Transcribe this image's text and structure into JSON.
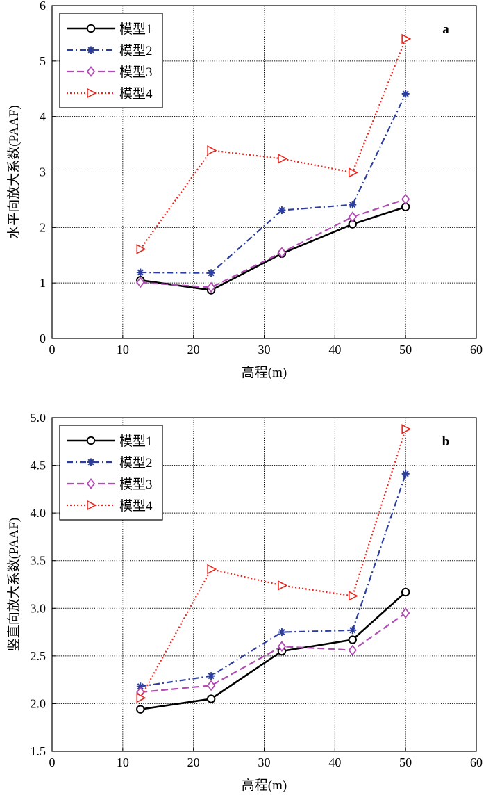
{
  "chart_data": [
    {
      "type": "line",
      "panel_label": "a",
      "xlabel": "高程(m)",
      "ylabel": "水平向放大系数(PAAF)",
      "xlim": [
        0,
        60
      ],
      "ylim": [
        0,
        6
      ],
      "xticks": [
        0,
        10,
        20,
        30,
        40,
        50,
        60
      ],
      "xtick_labels": [
        "0",
        "10",
        "20",
        "30",
        "40",
        "50",
        "60"
      ],
      "yticks": [
        0,
        1,
        2,
        3,
        4,
        5,
        6
      ],
      "ytick_labels": [
        "0",
        "1",
        "2",
        "3",
        "4",
        "5",
        "6"
      ],
      "grid": true,
      "legend_position": "top-left",
      "x": [
        12.5,
        22.5,
        32.5,
        42.5,
        50
      ],
      "series": [
        {
          "name": "模型1",
          "values": [
            1.05,
            0.87,
            1.53,
            2.06,
            2.37
          ],
          "color": "#000000",
          "dash": "solid",
          "marker": "circle"
        },
        {
          "name": "模型2",
          "values": [
            1.19,
            1.18,
            2.31,
            2.41,
            4.41
          ],
          "color": "#2b3e9e",
          "dash": "dashdot",
          "marker": "asterisk"
        },
        {
          "name": "模型3",
          "values": [
            1.01,
            0.92,
            1.55,
            2.19,
            2.51
          ],
          "color": "#b14bb4",
          "dash": "dashed",
          "marker": "diamond"
        },
        {
          "name": "模型4",
          "values": [
            1.61,
            3.39,
            3.24,
            2.99,
            5.4
          ],
          "color": "#e8261e",
          "dash": "dotted",
          "marker": "triangle-right"
        }
      ]
    },
    {
      "type": "line",
      "panel_label": "b",
      "xlabel": "高程(m)",
      "ylabel": "竖直向放大系数(PAAF)",
      "xlim": [
        0,
        60
      ],
      "ylim": [
        1.5,
        5.0
      ],
      "xticks": [
        0,
        10,
        20,
        30,
        40,
        50,
        60
      ],
      "xtick_labels": [
        "0",
        "10",
        "20",
        "30",
        "40",
        "50",
        "60"
      ],
      "yticks": [
        1.5,
        2.0,
        2.5,
        3.0,
        3.5,
        4.0,
        4.5,
        5.0
      ],
      "ytick_labels": [
        "1.5",
        "2.0",
        "2.5",
        "3.0",
        "3.5",
        "4.0",
        "4.5",
        "5.0"
      ],
      "grid": true,
      "legend_position": "top-left",
      "x": [
        12.5,
        22.5,
        32.5,
        42.5,
        50
      ],
      "series": [
        {
          "name": "模型1",
          "values": [
            1.94,
            2.05,
            2.55,
            2.67,
            3.17
          ],
          "color": "#000000",
          "dash": "solid",
          "marker": "circle"
        },
        {
          "name": "模型2",
          "values": [
            2.18,
            2.29,
            2.75,
            2.77,
            4.41
          ],
          "color": "#2b3e9e",
          "dash": "dashdot",
          "marker": "asterisk"
        },
        {
          "name": "模型3",
          "values": [
            2.12,
            2.19,
            2.6,
            2.56,
            2.95
          ],
          "color": "#b14bb4",
          "dash": "dashed",
          "marker": "diamond"
        },
        {
          "name": "模型4",
          "values": [
            2.06,
            3.41,
            3.24,
            3.13,
            4.88
          ],
          "color": "#e8261e",
          "dash": "dotted",
          "marker": "triangle-right"
        }
      ]
    }
  ]
}
